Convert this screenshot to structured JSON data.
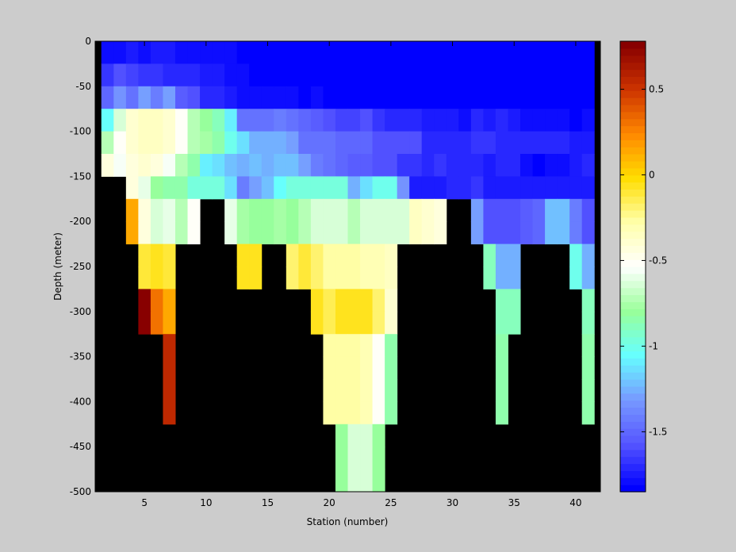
{
  "chart_data": {
    "type": "heatmap",
    "title": "",
    "xlabel": "Station (number)",
    "ylabel": "Depth (meter)",
    "xlim": [
      1,
      42
    ],
    "ylim": [
      -500,
      0
    ],
    "x_ticks": [
      5,
      10,
      15,
      20,
      25,
      30,
      35,
      40
    ],
    "y_ticks": [
      0,
      -50,
      -100,
      -150,
      -200,
      -250,
      -300,
      -350,
      -400,
      -450,
      -500
    ],
    "colorbar": {
      "range": [
        -1.85,
        0.78
      ],
      "ticks": [
        0.5,
        0,
        -0.5,
        -1,
        -1.5
      ],
      "colormap": "jet-like with white band near -0.5",
      "levels": 64,
      "colors": [
        "#0000ff",
        "#5555ff",
        "#7799ff",
        "#66ffff",
        "#99ff99",
        "#ffffff",
        "#ffffaa",
        "#ffdd00",
        "#ff8800",
        "#cc3300",
        "#880000"
      ]
    },
    "missing_color": "#000000",
    "background_color": "#000000",
    "grid": false,
    "stations": [
      2,
      3,
      4,
      5,
      6,
      7,
      8,
      9,
      10,
      11,
      12,
      13,
      14,
      15,
      16,
      17,
      18,
      19,
      20,
      21,
      22,
      23,
      24,
      25,
      26,
      27,
      28,
      29,
      30,
      31,
      32,
      33,
      34,
      35,
      36,
      37,
      38,
      39,
      40,
      41
    ],
    "depths": [
      0,
      -25,
      -50,
      -75,
      -100,
      -125,
      -150,
      -175,
      -200,
      -225,
      -250,
      -275,
      -300,
      -325,
      -350,
      -375,
      -400,
      -425,
      -450,
      -475,
      -500
    ],
    "values": [
      [
        -1.8,
        -1.78,
        -1.76,
        -1.77,
        -1.75,
        -1.75,
        -1.78,
        -1.78,
        -1.78,
        -1.8,
        -1.8,
        -1.83,
        -1.84,
        -1.85,
        -1.85,
        -1.85,
        -1.85,
        -1.85,
        -1.85,
        -1.85,
        -1.85,
        -1.85,
        -1.85,
        -1.85,
        -1.85,
        -1.85,
        -1.85,
        -1.85,
        -1.85,
        -1.85,
        -1.85,
        -1.85,
        -1.85,
        -1.85,
        -1.85,
        -1.85,
        -1.85,
        -1.85,
        -1.85,
        -1.85
      ],
      [
        -1.65,
        -1.6,
        -1.62,
        -1.65,
        -1.68,
        -1.7,
        -1.72,
        -1.72,
        -1.73,
        -1.75,
        -1.78,
        -1.8,
        -1.82,
        -1.82,
        -1.83,
        -1.84,
        -1.84,
        -1.85,
        -1.85,
        -1.85,
        -1.85,
        -1.85,
        -1.85,
        -1.85,
        -1.85,
        -1.85,
        -1.85,
        -1.85,
        -1.85,
        -1.85,
        -1.85,
        -1.85,
        -1.85,
        -1.85,
        -1.85,
        -1.85,
        -1.85,
        -1.85,
        -1.85,
        -1.85
      ],
      [
        -1.5,
        -1.35,
        -1.45,
        -1.3,
        -1.4,
        -1.3,
        -1.55,
        -1.6,
        -1.7,
        -1.72,
        -1.75,
        -1.78,
        -1.8,
        -1.8,
        -1.78,
        -1.8,
        -1.82,
        -1.8,
        -1.83,
        -1.82,
        -1.82,
        -1.84,
        -1.84,
        -1.84,
        -1.85,
        -1.85,
        -1.85,
        -1.85,
        -1.85,
        -1.85,
        -1.85,
        -1.85,
        -1.83,
        -1.85,
        -1.85,
        -1.85,
        -1.85,
        -1.85,
        -1.85,
        -1.85
      ],
      [
        -1.05,
        -0.65,
        -0.4,
        -0.35,
        -0.35,
        -0.4,
        -0.5,
        -0.7,
        -0.8,
        -0.9,
        -1.1,
        -1.45,
        -1.45,
        -1.45,
        -1.4,
        -1.45,
        -1.5,
        -1.55,
        -1.6,
        -1.62,
        -1.62,
        -1.6,
        -1.65,
        -1.7,
        -1.7,
        -1.7,
        -1.75,
        -1.75,
        -1.75,
        -1.78,
        -1.7,
        -1.75,
        -1.72,
        -1.75,
        -1.78,
        -1.8,
        -1.8,
        -1.8,
        -1.82,
        -1.78
      ],
      [
        -0.7,
        -0.5,
        -0.38,
        -0.35,
        -0.35,
        -0.4,
        -0.5,
        -0.7,
        -0.78,
        -0.85,
        -1.0,
        -1.15,
        -1.25,
        -1.25,
        -1.25,
        -1.3,
        -1.45,
        -1.45,
        -1.45,
        -1.5,
        -1.5,
        -1.5,
        -1.6,
        -1.6,
        -1.6,
        -1.6,
        -1.7,
        -1.7,
        -1.72,
        -1.7,
        -1.65,
        -1.65,
        -1.72,
        -1.7,
        -1.7,
        -1.72,
        -1.72,
        -1.72,
        -1.75,
        -1.75
      ],
      [
        -0.45,
        -0.55,
        -0.45,
        -0.4,
        -0.45,
        -0.55,
        -0.7,
        -0.85,
        -1.1,
        -1.15,
        -1.2,
        -1.25,
        -1.2,
        -1.25,
        -1.2,
        -1.2,
        -1.3,
        -1.4,
        -1.45,
        -1.5,
        -1.55,
        -1.55,
        -1.58,
        -1.6,
        -1.65,
        -1.65,
        -1.7,
        -1.65,
        -1.7,
        -1.7,
        -1.7,
        -1.75,
        -1.7,
        -1.72,
        -1.78,
        -1.82,
        -1.8,
        -1.8,
        -1.75,
        -1.72
      ],
      [
        null,
        null,
        -0.45,
        -0.6,
        -0.8,
        -0.85,
        -0.85,
        -0.95,
        -0.95,
        -0.95,
        -1.15,
        -1.4,
        -1.3,
        -1.2,
        -1.05,
        -0.95,
        -0.95,
        -0.95,
        -0.95,
        -0.95,
        -1.25,
        -1.15,
        -1.0,
        -1.0,
        -1.35,
        -1.75,
        -1.75,
        -1.75,
        -1.7,
        -1.7,
        -1.65,
        -1.75,
        -1.75,
        -1.75,
        -1.75,
        -1.75,
        -1.75,
        -1.75,
        -1.75,
        -1.75
      ],
      [
        null,
        null,
        0.15,
        -0.45,
        -0.65,
        -0.6,
        -0.7,
        -0.5,
        null,
        null,
        -0.6,
        -0.75,
        -0.8,
        -0.8,
        -0.78,
        -0.8,
        -0.7,
        -0.62,
        -0.62,
        -0.62,
        -0.7,
        -0.65,
        -0.65,
        -0.65,
        -0.62,
        -0.35,
        -0.4,
        -0.45,
        null,
        null,
        -1.3,
        -1.6,
        -1.6,
        -1.6,
        -1.55,
        -1.5,
        -1.2,
        -1.2,
        -1.4,
        -1.6
      ],
      [
        null,
        null,
        0.15,
        -0.45,
        -0.65,
        -0.6,
        -0.7,
        -0.5,
        null,
        null,
        -0.6,
        -0.75,
        -0.8,
        -0.8,
        -0.78,
        -0.8,
        -0.7,
        -0.62,
        -0.62,
        -0.62,
        -0.7,
        -0.65,
        -0.65,
        -0.65,
        -0.62,
        -0.35,
        -0.4,
        -0.45,
        null,
        null,
        -1.3,
        -1.6,
        -1.6,
        -1.6,
        -1.55,
        -1.5,
        -1.2,
        -1.2,
        -1.4,
        -1.6
      ],
      [
        null,
        null,
        null,
        -0.1,
        -0.05,
        -0.1,
        null,
        null,
        null,
        null,
        null,
        -0.05,
        -0.05,
        null,
        null,
        -0.2,
        -0.1,
        -0.2,
        -0.25,
        -0.25,
        -0.25,
        -0.3,
        -0.3,
        -0.35,
        null,
        null,
        null,
        null,
        null,
        null,
        null,
        -0.9,
        -1.25,
        -1.25,
        null,
        null,
        null,
        null,
        -1.0,
        -1.25
      ],
      [
        null,
        null,
        null,
        -0.1,
        -0.05,
        -0.1,
        null,
        null,
        null,
        null,
        null,
        -0.05,
        -0.05,
        null,
        null,
        -0.2,
        -0.1,
        -0.2,
        -0.25,
        -0.25,
        -0.25,
        -0.3,
        -0.3,
        -0.35,
        null,
        null,
        null,
        null,
        null,
        null,
        null,
        -0.9,
        -1.25,
        -1.25,
        null,
        null,
        null,
        null,
        -1.0,
        -1.25
      ],
      [
        null,
        null,
        null,
        0.78,
        0.3,
        0.15,
        null,
        null,
        null,
        null,
        null,
        null,
        null,
        null,
        null,
        null,
        null,
        -0.05,
        -0.15,
        -0.05,
        -0.05,
        -0.05,
        -0.2,
        -0.4,
        null,
        null,
        null,
        null,
        null,
        null,
        null,
        null,
        -0.9,
        -0.9,
        null,
        null,
        null,
        null,
        null,
        -0.9
      ],
      [
        null,
        null,
        null,
        0.78,
        0.3,
        0.15,
        null,
        null,
        null,
        null,
        null,
        null,
        null,
        null,
        null,
        null,
        null,
        -0.05,
        -0.15,
        -0.05,
        -0.05,
        -0.05,
        -0.2,
        -0.4,
        null,
        null,
        null,
        null,
        null,
        null,
        null,
        null,
        -0.9,
        -0.9,
        null,
        null,
        null,
        null,
        null,
        -0.9
      ],
      [
        null,
        null,
        null,
        null,
        null,
        0.55,
        null,
        null,
        null,
        null,
        null,
        null,
        null,
        null,
        null,
        null,
        null,
        null,
        -0.25,
        -0.25,
        -0.25,
        -0.3,
        -0.5,
        -0.85,
        null,
        null,
        null,
        null,
        null,
        null,
        null,
        null,
        -0.85,
        null,
        null,
        null,
        null,
        null,
        null,
        -0.85
      ],
      [
        null,
        null,
        null,
        null,
        null,
        0.55,
        null,
        null,
        null,
        null,
        null,
        null,
        null,
        null,
        null,
        null,
        null,
        null,
        -0.25,
        -0.25,
        -0.25,
        -0.3,
        -0.5,
        -0.85,
        null,
        null,
        null,
        null,
        null,
        null,
        null,
        null,
        -0.85,
        null,
        null,
        null,
        null,
        null,
        null,
        -0.85
      ],
      [
        null,
        null,
        null,
        null,
        null,
        0.55,
        null,
        null,
        null,
        null,
        null,
        null,
        null,
        null,
        null,
        null,
        null,
        null,
        -0.25,
        -0.25,
        -0.25,
        -0.3,
        -0.5,
        -0.85,
        null,
        null,
        null,
        null,
        null,
        null,
        null,
        null,
        -0.85,
        null,
        null,
        null,
        null,
        null,
        null,
        -0.85
      ],
      [
        null,
        null,
        null,
        null,
        null,
        0.55,
        null,
        null,
        null,
        null,
        null,
        null,
        null,
        null,
        null,
        null,
        null,
        null,
        -0.25,
        -0.25,
        -0.25,
        -0.3,
        -0.5,
        -0.85,
        null,
        null,
        null,
        null,
        null,
        null,
        null,
        null,
        -0.85,
        null,
        null,
        null,
        null,
        null,
        null,
        -0.85
      ],
      [
        null,
        null,
        null,
        null,
        null,
        null,
        null,
        null,
        null,
        null,
        null,
        null,
        null,
        null,
        null,
        null,
        null,
        null,
        null,
        -0.8,
        -0.65,
        -0.65,
        -0.8,
        null,
        null,
        null,
        null,
        null,
        null,
        null,
        null,
        null,
        null,
        null,
        null,
        null,
        null,
        null,
        null,
        null
      ],
      [
        null,
        null,
        null,
        null,
        null,
        null,
        null,
        null,
        null,
        null,
        null,
        null,
        null,
        null,
        null,
        null,
        null,
        null,
        null,
        -0.8,
        -0.65,
        -0.65,
        -0.8,
        null,
        null,
        null,
        null,
        null,
        null,
        null,
        null,
        null,
        null,
        null,
        null,
        null,
        null,
        null,
        null,
        null
      ],
      [
        null,
        null,
        null,
        null,
        null,
        null,
        null,
        null,
        null,
        null,
        null,
        null,
        null,
        null,
        null,
        null,
        null,
        null,
        null,
        -0.8,
        -0.65,
        -0.65,
        -0.8,
        null,
        null,
        null,
        null,
        null,
        null,
        null,
        null,
        null,
        null,
        null,
        null,
        null,
        null,
        null,
        null,
        null
      ]
    ]
  }
}
